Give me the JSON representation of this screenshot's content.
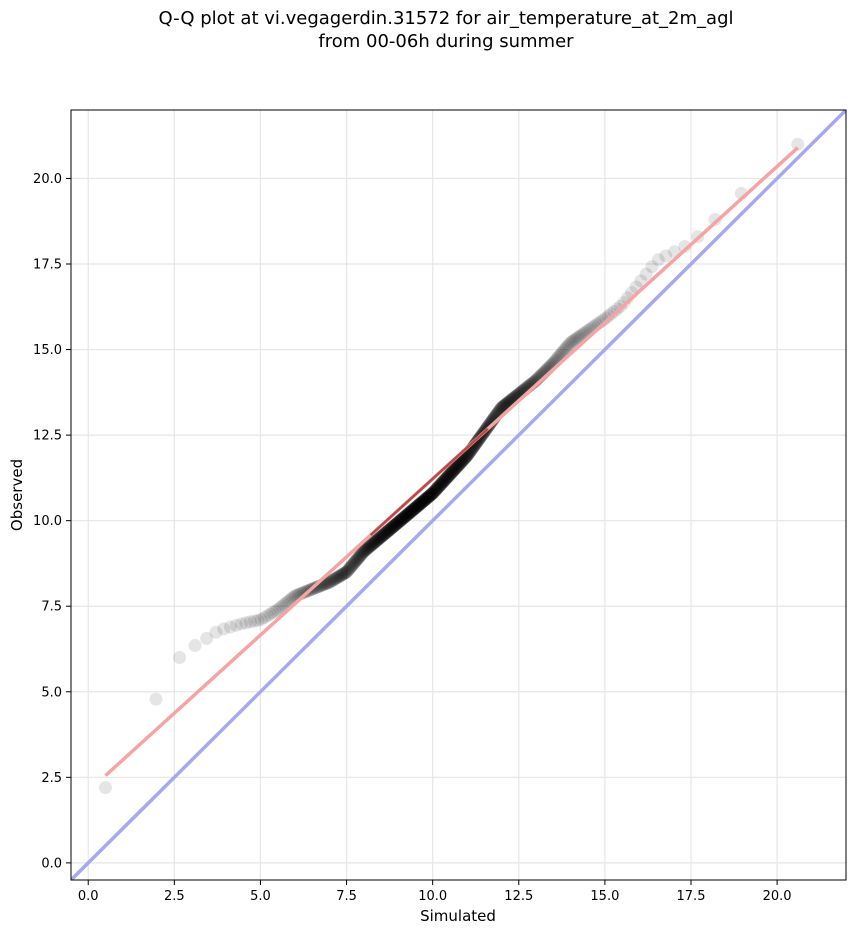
{
  "chart_data": {
    "type": "scatter",
    "title": [
      "Q-Q plot at vi.vegagerdin.31572 for air_temperature_at_2m_agl",
      "from 00-06h during summer"
    ],
    "xlabel": "Simulated",
    "ylabel": "Observed",
    "xlim": [
      -0.5,
      22.0
    ],
    "ylim": [
      -0.5,
      22.0
    ],
    "xticks": [
      0.0,
      2.5,
      5.0,
      7.5,
      10.0,
      12.5,
      15.0,
      17.5,
      20.0
    ],
    "yticks": [
      0.0,
      2.5,
      5.0,
      7.5,
      10.0,
      12.5,
      15.0,
      17.5,
      20.0
    ],
    "xtick_labels": [
      "0.0",
      "2.5",
      "5.0",
      "7.5",
      "10.0",
      "12.5",
      "15.0",
      "17.5",
      "20.0"
    ],
    "ytick_labels": [
      "0.0",
      "2.5",
      "5.0",
      "7.5",
      "10.0",
      "12.5",
      "15.0",
      "17.5",
      "20.0"
    ],
    "grid": true,
    "colors": {
      "points": "#000000",
      "fit_line": "#f5a3a3",
      "fit_line_dark": "#8b0000",
      "identity_line": "#a8a8f0",
      "grid": "#e6e6e6"
    },
    "identity_line": {
      "x": [
        -0.5,
        22.0
      ],
      "y": [
        -0.5,
        22.0
      ]
    },
    "fit_line": {
      "x": [
        0.5,
        20.6
      ],
      "y": [
        2.55,
        20.9
      ]
    },
    "quantile_anchors": {
      "x": [
        0.5,
        0.55,
        0.8,
        1.2,
        1.5,
        1.6,
        2.0,
        2.3,
        2.5,
        2.8,
        3.2,
        3.8,
        4.5,
        5.0,
        5.5,
        6.0,
        6.5,
        7.0,
        7.5,
        8.0,
        9.0,
        10.0,
        11.0,
        11.5,
        12.0,
        12.5,
        13.0,
        13.5,
        14.0,
        15.0,
        15.5,
        16.5,
        17.5,
        18.3,
        19.0,
        19.4,
        20.3,
        20.6
      ],
      "y": [
        2.2,
        3.0,
        3.35,
        3.6,
        4.0,
        4.6,
        4.8,
        5.2,
        5.8,
        6.2,
        6.4,
        6.8,
        7.0,
        7.1,
        7.4,
        7.8,
        8.0,
        8.2,
        8.5,
        9.1,
        9.95,
        10.8,
        11.9,
        12.6,
        13.3,
        13.7,
        14.1,
        14.6,
        15.2,
        15.9,
        16.3,
        17.6,
        18.1,
        18.9,
        19.6,
        20.6,
        20.9,
        21.0
      ],
      "n_points": 620
    }
  }
}
